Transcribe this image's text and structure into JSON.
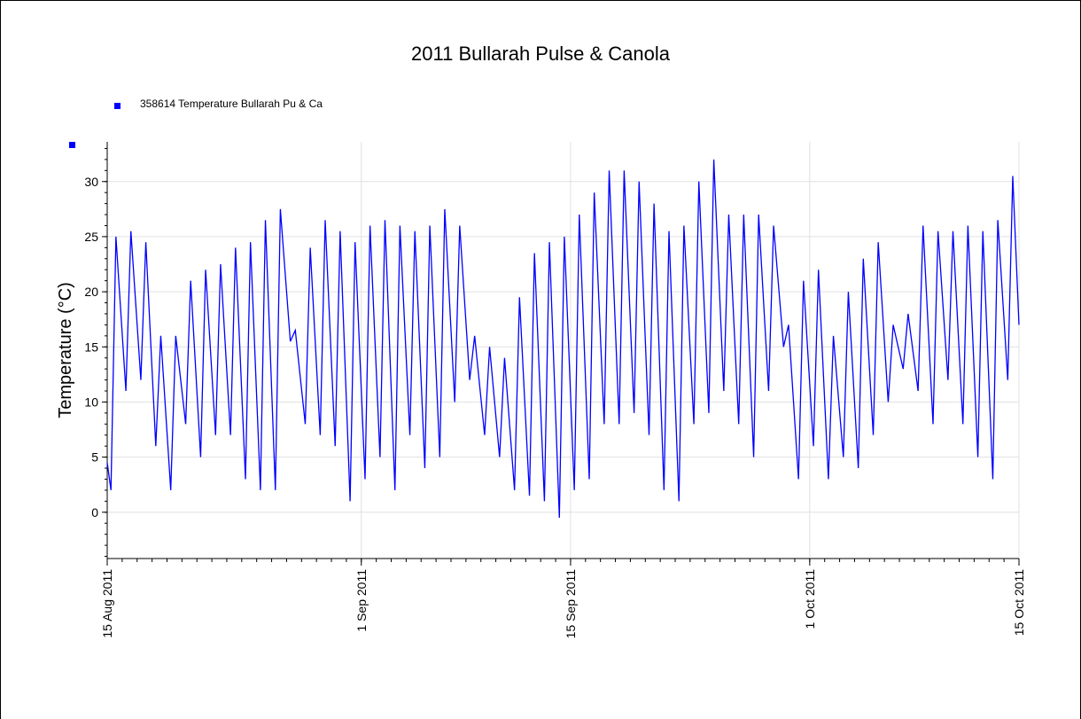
{
  "chart_data": {
    "type": "line",
    "title": "2011 Bullarah Pulse & Canola",
    "ylabel": "Temperature (°C)",
    "xlim": [
      "2011-08-15T00:00",
      "2011-10-15T00:00"
    ],
    "xticks": [
      {
        "value": "2011-08-15T00:00",
        "label": "15 Aug 2011"
      },
      {
        "value": "2011-09-01T00:00",
        "label": "1 Sep 2011"
      },
      {
        "value": "2011-09-15T00:00",
        "label": "15 Sep 2011"
      },
      {
        "value": "2011-10-01T00:00",
        "label": "1 Oct 2011"
      },
      {
        "value": "2011-10-15T00:00",
        "label": "15 Oct 2011"
      }
    ],
    "ylim": [
      -4.2,
      33.6
    ],
    "yticks": [
      0,
      5,
      10,
      15,
      20,
      25,
      30
    ],
    "grid": true,
    "x": [
      "2011-08-15T00:00",
      "2011-08-15T06:00",
      "2011-08-15T14:00",
      "2011-08-16T06:00",
      "2011-08-16T14:00",
      "2011-08-17T06:00",
      "2011-08-17T14:00",
      "2011-08-18T06:00",
      "2011-08-18T14:00",
      "2011-08-19T06:00",
      "2011-08-19T14:00",
      "2011-08-20T06:00",
      "2011-08-20T14:00",
      "2011-08-21T06:00",
      "2011-08-21T14:00",
      "2011-08-22T06:00",
      "2011-08-22T14:00",
      "2011-08-23T06:00",
      "2011-08-23T14:00",
      "2011-08-24T06:00",
      "2011-08-24T14:00",
      "2011-08-25T06:00",
      "2011-08-25T14:00",
      "2011-08-26T06:00",
      "2011-08-26T14:00",
      "2011-08-27T06:00",
      "2011-08-27T14:00",
      "2011-08-28T06:00",
      "2011-08-28T14:00",
      "2011-08-29T06:00",
      "2011-08-29T14:00",
      "2011-08-30T06:00",
      "2011-08-30T14:00",
      "2011-08-31T06:00",
      "2011-08-31T14:00",
      "2011-09-01T06:00",
      "2011-09-01T14:00",
      "2011-09-02T06:00",
      "2011-09-02T14:00",
      "2011-09-03T06:00",
      "2011-09-03T14:00",
      "2011-09-04T06:00",
      "2011-09-04T14:00",
      "2011-09-05T06:00",
      "2011-09-05T14:00",
      "2011-09-06T06:00",
      "2011-09-06T14:00",
      "2011-09-07T06:00",
      "2011-09-07T14:00",
      "2011-09-08T06:00",
      "2011-09-08T14:00",
      "2011-09-09T06:00",
      "2011-09-09T14:00",
      "2011-09-10T06:00",
      "2011-09-10T14:00",
      "2011-09-11T06:00",
      "2011-09-11T14:00",
      "2011-09-12T06:00",
      "2011-09-12T14:00",
      "2011-09-13T06:00",
      "2011-09-13T14:00",
      "2011-09-14T06:00",
      "2011-09-14T14:00",
      "2011-09-15T06:00",
      "2011-09-15T14:00",
      "2011-09-16T06:00",
      "2011-09-16T14:00",
      "2011-09-17T06:00",
      "2011-09-17T14:00",
      "2011-09-18T06:00",
      "2011-09-18T14:00",
      "2011-09-19T06:00",
      "2011-09-19T14:00",
      "2011-09-20T06:00",
      "2011-09-20T14:00",
      "2011-09-21T06:00",
      "2011-09-21T14:00",
      "2011-09-22T06:00",
      "2011-09-22T14:00",
      "2011-09-23T06:00",
      "2011-09-23T14:00",
      "2011-09-24T06:00",
      "2011-09-24T14:00",
      "2011-09-25T06:00",
      "2011-09-25T14:00",
      "2011-09-26T06:00",
      "2011-09-26T14:00",
      "2011-09-27T06:00",
      "2011-09-27T14:00",
      "2011-09-28T06:00",
      "2011-09-28T14:00",
      "2011-09-29T06:00",
      "2011-09-29T14:00",
      "2011-09-30T06:00",
      "2011-09-30T14:00",
      "2011-10-01T06:00",
      "2011-10-01T14:00",
      "2011-10-02T06:00",
      "2011-10-02T14:00",
      "2011-10-03T06:00",
      "2011-10-03T14:00",
      "2011-10-04T06:00",
      "2011-10-04T14:00",
      "2011-10-05T06:00",
      "2011-10-05T14:00",
      "2011-10-06T06:00",
      "2011-10-06T14:00",
      "2011-10-07T06:00",
      "2011-10-07T14:00",
      "2011-10-08T06:00",
      "2011-10-08T14:00",
      "2011-10-09T06:00",
      "2011-10-09T14:00",
      "2011-10-10T06:00",
      "2011-10-10T14:00",
      "2011-10-11T06:00",
      "2011-10-11T14:00",
      "2011-10-12T06:00",
      "2011-10-12T14:00",
      "2011-10-13T06:00",
      "2011-10-13T14:00",
      "2011-10-14T06:00",
      "2011-10-14T14:00",
      "2011-10-15T00:00"
    ],
    "series": [
      {
        "name": "358614  Temperature Bullarah Pu & Ca",
        "color": "#0000ff",
        "values": [
          4.5,
          2,
          25,
          11,
          25.5,
          12,
          24.5,
          6,
          16,
          2,
          16,
          8,
          21,
          5,
          22,
          7,
          22.5,
          7,
          24,
          3,
          24.5,
          2,
          26.5,
          2,
          27.5,
          15.5,
          16.5,
          8,
          24,
          7,
          26.5,
          6,
          25.5,
          1,
          24.5,
          3,
          26,
          5,
          26.5,
          2,
          26,
          7,
          25.5,
          4,
          26,
          5,
          27.5,
          10,
          26,
          12,
          16,
          7,
          15,
          5,
          14,
          2,
          19.5,
          1.5,
          23.5,
          1,
          24.5,
          -0.5,
          25,
          2,
          27,
          3,
          29,
          8,
          31,
          8,
          31,
          9,
          30,
          7,
          28,
          2,
          25.5,
          1,
          26,
          8,
          30,
          9,
          32,
          11,
          27,
          8,
          27,
          5,
          27,
          11,
          26,
          15,
          17,
          3,
          21,
          6,
          22,
          3,
          16,
          5,
          20,
          4,
          23,
          7,
          24.5,
          10,
          17,
          13,
          18,
          11,
          26,
          8,
          25.5,
          12,
          25.5,
          8,
          26,
          5,
          25.5,
          3,
          26.5,
          12,
          30.5,
          17
        ]
      }
    ]
  }
}
